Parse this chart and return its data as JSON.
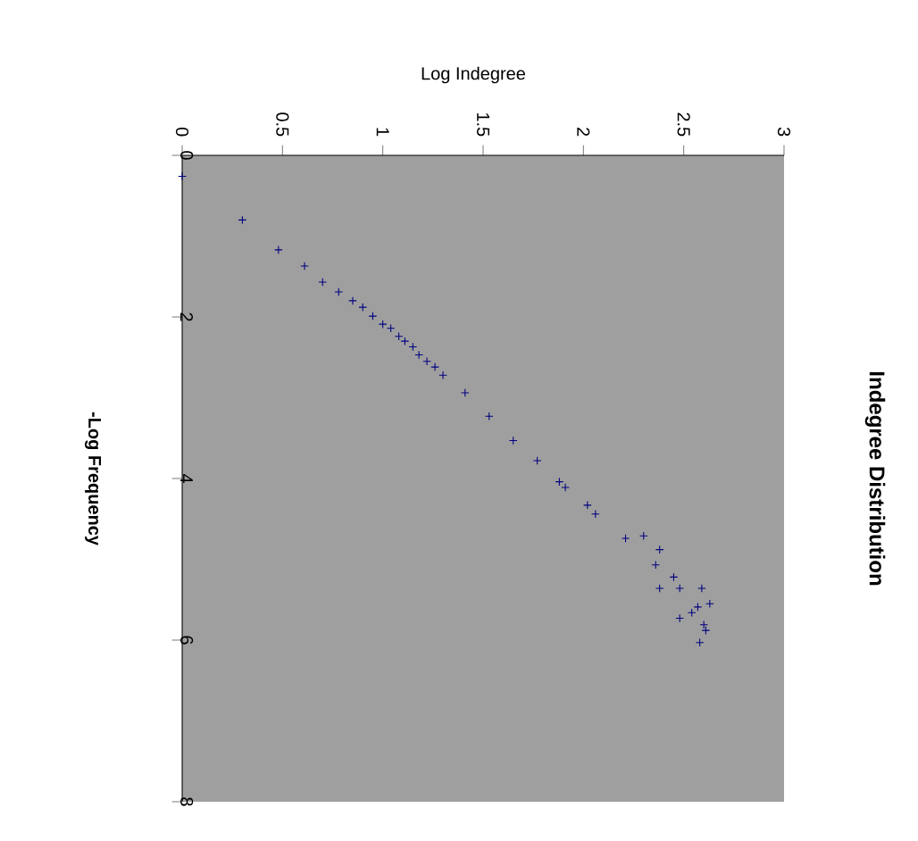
{
  "chart_data": {
    "type": "scatter",
    "title": "Indegree Distribution",
    "xlabel": "Log Indegree",
    "ylabel": "-Log Frequency",
    "x": [
      0.0,
      0.3,
      0.48,
      0.61,
      0.7,
      0.78,
      0.85,
      0.9,
      0.95,
      1.0,
      1.04,
      1.08,
      1.11,
      1.15,
      1.18,
      1.22,
      1.26,
      1.3,
      1.41,
      1.53,
      1.65,
      1.77,
      1.88,
      1.91,
      2.02,
      2.06,
      2.3,
      2.21,
      2.38,
      2.36,
      2.45,
      2.48,
      2.38,
      2.59,
      2.63,
      2.57,
      2.54,
      2.48,
      2.6,
      2.61,
      2.58
    ],
    "series": [
      {
        "color": "#000080",
        "values": [
          0.26,
          0.8,
          1.17,
          1.37,
          1.57,
          1.69,
          1.8,
          1.88,
          1.99,
          2.09,
          2.14,
          2.24,
          2.3,
          2.37,
          2.47,
          2.55,
          2.62,
          2.72,
          2.94,
          3.23,
          3.53,
          3.78,
          4.04,
          4.11,
          4.33,
          4.44,
          4.71,
          4.74,
          4.88,
          5.07,
          5.22,
          5.36,
          5.36,
          5.36,
          5.55,
          5.59,
          5.66,
          5.73,
          5.81,
          5.88,
          6.03
        ]
      }
    ],
    "xlim": [
      0,
      3
    ],
    "ylim": [
      8,
      0
    ],
    "xticks": [
      0,
      0.5,
      1,
      1.5,
      2,
      2.5,
      3
    ],
    "yticks": [
      0,
      2,
      4,
      6,
      8
    ],
    "marker": "cross",
    "grid": false
  }
}
